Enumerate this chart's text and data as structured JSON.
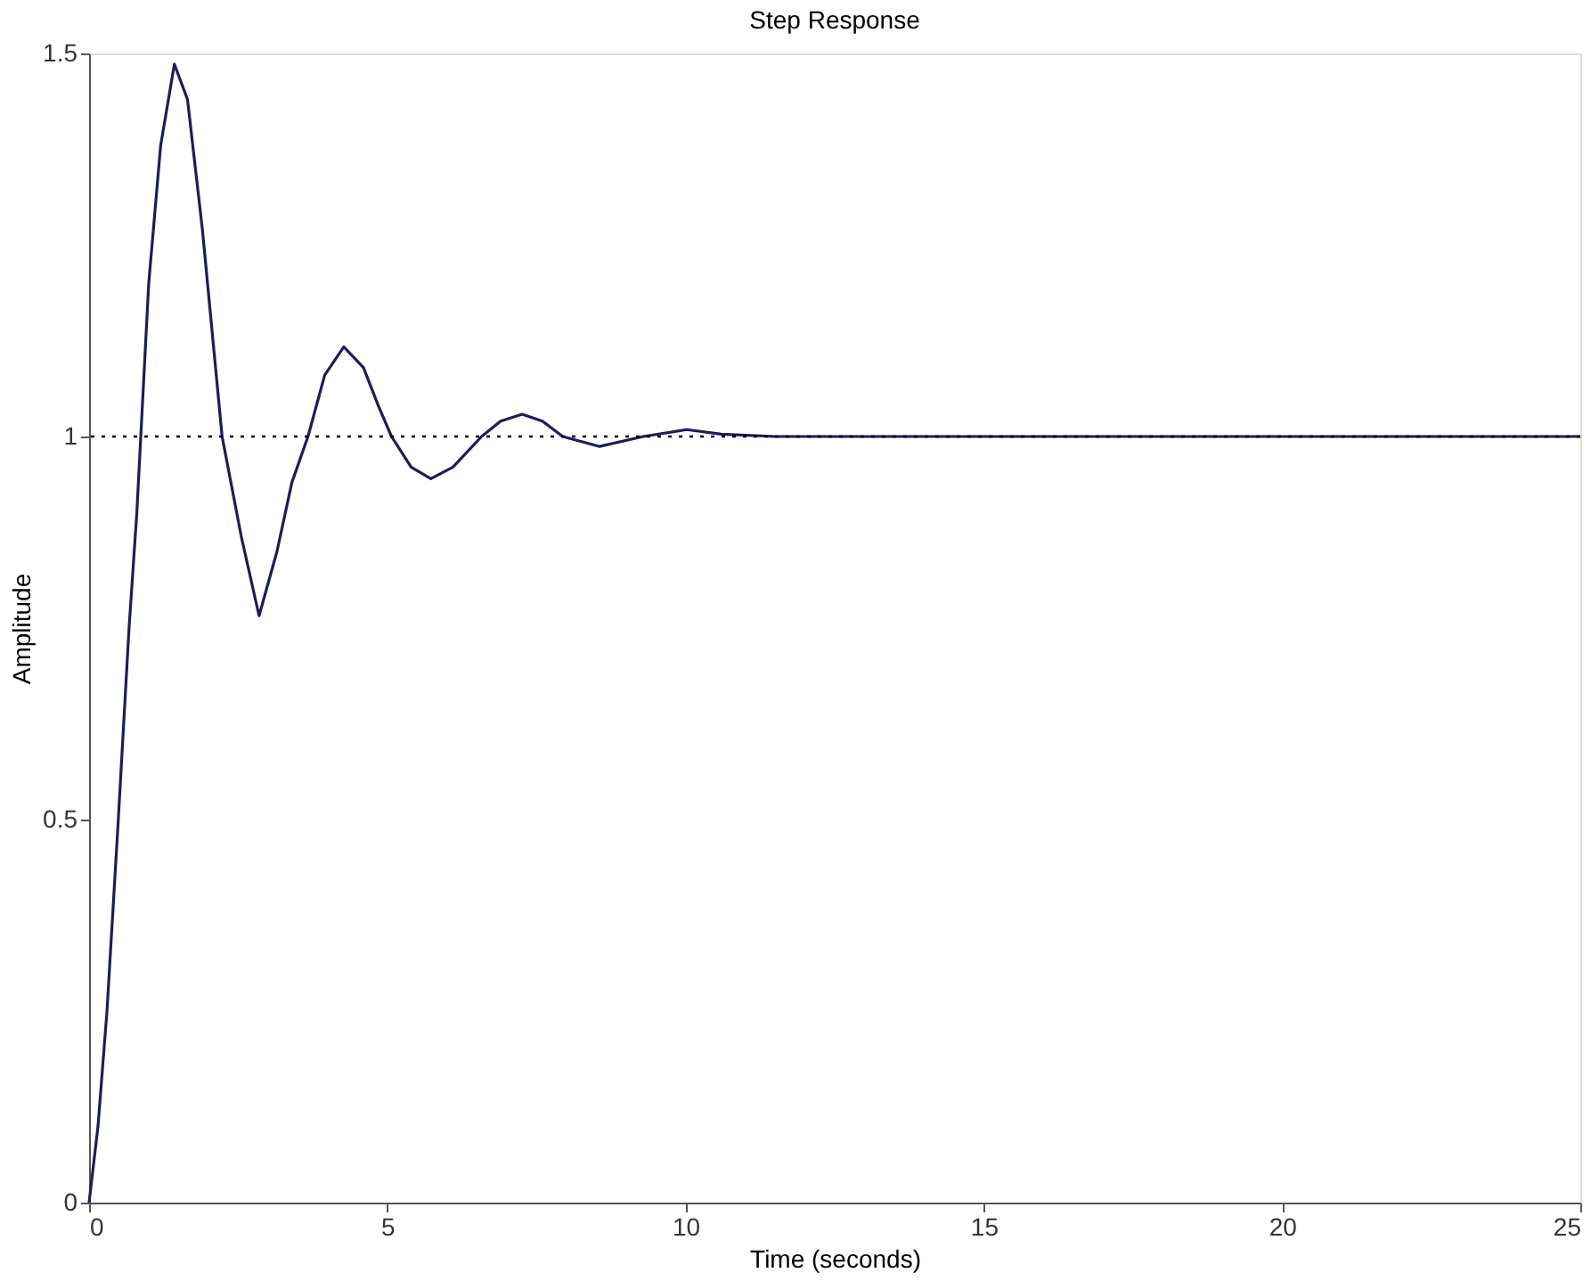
{
  "chart_data": {
    "type": "line",
    "title": "Step Response",
    "xlabel": "Time (seconds)",
    "ylabel": "Amplitude",
    "x": [
      0,
      0.15,
      0.3,
      0.49,
      0.67,
      0.8,
      1.0,
      1.2,
      1.43,
      1.65,
      1.9,
      2.23,
      2.55,
      2.85,
      3.15,
      3.4,
      3.67,
      3.95,
      4.27,
      4.6,
      4.85,
      5.07,
      5.4,
      5.73,
      6.1,
      6.58,
      6.9,
      7.26,
      7.6,
      7.94,
      8.56,
      9.29,
      10.02,
      10.6,
      11.5,
      25
    ],
    "series": [
      {
        "color": "#1c1c5c",
        "values": [
          0,
          0.1,
          0.25,
          0.5,
          0.75,
          0.9,
          1.2,
          1.38,
          1.486,
          1.44,
          1.27,
          1.0,
          0.87,
          0.766,
          0.85,
          0.94,
          1.0,
          1.08,
          1.117,
          1.09,
          1.04,
          1.0,
          0.96,
          0.945,
          0.96,
          1.0,
          1.02,
          1.029,
          1.02,
          1.0,
          0.987,
          1.0,
          1.009,
          1.003,
          1.0,
          1.0
        ]
      }
    ],
    "xlim": [
      0,
      25
    ],
    "xticks": [
      0,
      5,
      10,
      15,
      20,
      25
    ],
    "ylim": [
      0,
      1.5
    ],
    "yticks": [
      0,
      0.5,
      1,
      1.5
    ],
    "ref_lines": [
      {
        "axis": "y",
        "value": 1,
        "color": "#000000",
        "line_style": "dotted"
      }
    ],
    "grid": false,
    "marker": "none",
    "line_style": "solid"
  }
}
